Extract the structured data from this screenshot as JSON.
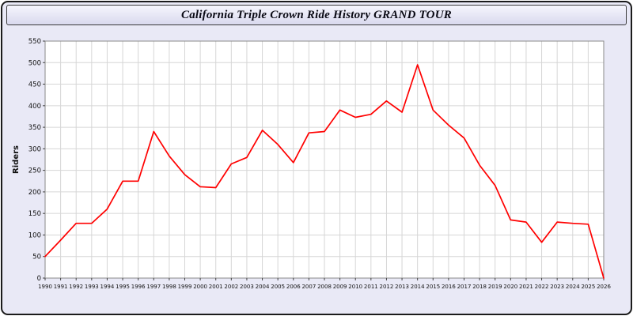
{
  "window": {
    "title": "California Triple Crown Ride History GRAND TOUR"
  },
  "colors": {
    "background": "#e9e9f6",
    "plot_background": "#ffffff",
    "grid": "#d6d6d6",
    "axis": "#8a8a8a",
    "line": "#ff0000",
    "text": "#111111"
  },
  "chart_data": {
    "type": "line",
    "title": "California Triple Crown Ride History GRAND TOUR",
    "xlabel": "",
    "ylabel": "Riders",
    "ylim": [
      0,
      550
    ],
    "ytick_step": 50,
    "grid": true,
    "legend": "none",
    "x": [
      1990,
      1991,
      1992,
      1993,
      1994,
      1995,
      1996,
      1997,
      1998,
      1999,
      2000,
      2001,
      2002,
      2003,
      2004,
      2005,
      2006,
      2007,
      2008,
      2009,
      2010,
      2011,
      2012,
      2013,
      2014,
      2015,
      2016,
      2017,
      2018,
      2019,
      2020,
      2021,
      2022,
      2023,
      2024,
      2025,
      2026
    ],
    "values": [
      50,
      88,
      127,
      127,
      160,
      225,
      225,
      340,
      283,
      240,
      212,
      210,
      265,
      280,
      343,
      310,
      268,
      337,
      340,
      390,
      373,
      380,
      411,
      385,
      495,
      390,
      355,
      325,
      262,
      215,
      135,
      130,
      83,
      130,
      127,
      125,
      0
    ]
  }
}
